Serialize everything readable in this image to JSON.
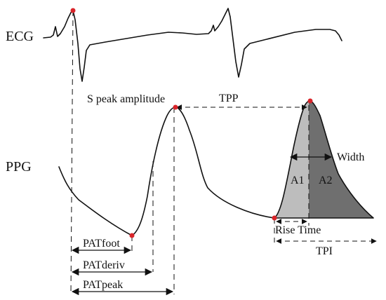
{
  "labels": {
    "ecg": "ECG",
    "ppg": "PPG",
    "s_peak_amplitude": "S peak amplitude",
    "tpp": "TPP",
    "width": "Width",
    "a1": "A1",
    "a2": "A2",
    "rise_time": "Rise Time",
    "tpi": "TPI",
    "pat_foot": "PATfoot",
    "pat_deriv": "PATderiv",
    "pat_peak": "PATpeak"
  },
  "colors": {
    "line": "#111111",
    "marker": "#d9252a",
    "area_a1": "#bdbdbd",
    "area_a2": "#6f6f6f"
  }
}
